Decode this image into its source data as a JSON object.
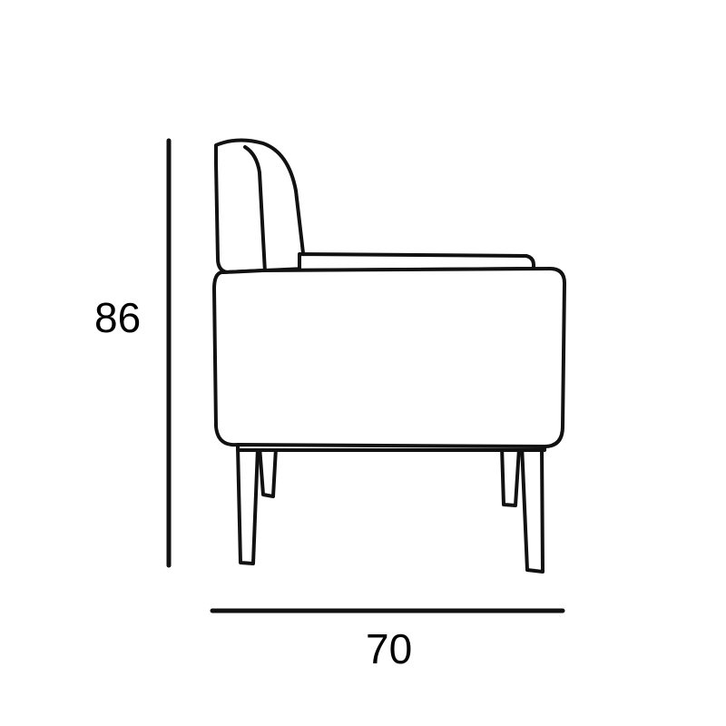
{
  "dimensions": {
    "height": "86",
    "width": "70"
  },
  "colors": {
    "line": "#111111",
    "background": "#ffffff"
  }
}
